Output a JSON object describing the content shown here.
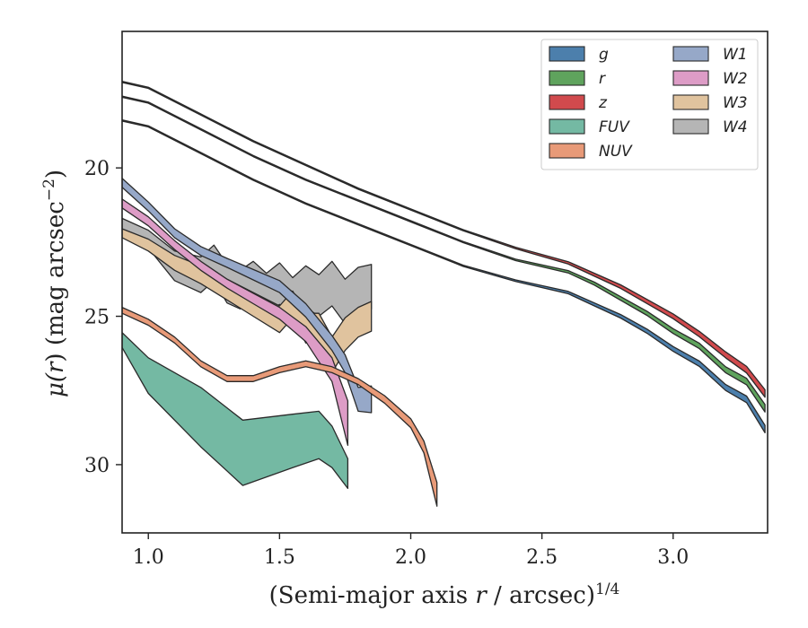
{
  "chart_data": {
    "type": "area",
    "xlabel_main": "(Semi-major axis ",
    "xlabel_var": "r",
    "xlabel_tail": " / arcsec)",
    "xlabel_sup": "1/4",
    "ylabel_main": "μ(",
    "ylabel_var": "r",
    "ylabel_tail": ") (mag arcsec",
    "ylabel_sup": "−2",
    "ylabel_close": ")",
    "xlim": [
      0.9,
      3.36
    ],
    "ylim": [
      32.3,
      15.4
    ],
    "y_inverted": true,
    "xticks": [
      1.0,
      1.5,
      2.0,
      2.5,
      3.0
    ],
    "xtick_labels": [
      "1.0",
      "1.5",
      "2.0",
      "2.5",
      "3.0"
    ],
    "yticks": [
      20,
      25,
      30
    ],
    "ytick_labels": [
      "20",
      "25",
      "30"
    ],
    "grid": false,
    "legend_position": "top-right",
    "legend_columns": 2,
    "series": [
      {
        "name": "g",
        "color": "#4c7fac",
        "x": [
          0.9,
          1.0,
          1.2,
          1.4,
          1.6,
          1.8,
          2.0,
          2.2,
          2.4,
          2.6,
          2.7,
          2.8,
          2.9,
          3.0,
          3.1,
          3.2,
          3.28,
          3.35
        ],
        "y": [
          18.4,
          18.6,
          19.5,
          20.4,
          21.2,
          21.9,
          22.6,
          23.3,
          23.8,
          24.2,
          24.6,
          25.0,
          25.5,
          26.1,
          26.6,
          27.4,
          27.8,
          28.8
        ],
        "width": [
          0.04,
          0.04,
          0.04,
          0.04,
          0.04,
          0.04,
          0.04,
          0.04,
          0.05,
          0.08,
          0.1,
          0.12,
          0.14,
          0.16,
          0.18,
          0.2,
          0.22,
          0.25
        ]
      },
      {
        "name": "r",
        "color": "#5fa35d",
        "x": [
          0.9,
          1.0,
          1.2,
          1.4,
          1.6,
          1.8,
          2.0,
          2.2,
          2.4,
          2.6,
          2.7,
          2.8,
          2.9,
          3.0,
          3.1,
          3.2,
          3.28,
          3.35
        ],
        "y": [
          17.6,
          17.8,
          18.7,
          19.6,
          20.4,
          21.1,
          21.8,
          22.5,
          23.1,
          23.5,
          23.9,
          24.4,
          24.9,
          25.5,
          26.0,
          26.8,
          27.2,
          28.1
        ],
        "width": [
          0.04,
          0.04,
          0.04,
          0.04,
          0.04,
          0.04,
          0.04,
          0.04,
          0.05,
          0.08,
          0.1,
          0.12,
          0.14,
          0.16,
          0.18,
          0.2,
          0.22,
          0.25
        ]
      },
      {
        "name": "z",
        "color": "#d14a4d",
        "x": [
          0.9,
          1.0,
          1.2,
          1.4,
          1.6,
          1.8,
          2.0,
          2.2,
          2.4,
          2.6,
          2.7,
          2.8,
          2.9,
          3.0,
          3.1,
          3.2,
          3.28,
          3.35
        ],
        "y": [
          17.1,
          17.3,
          18.2,
          19.1,
          19.9,
          20.7,
          21.4,
          22.1,
          22.7,
          23.2,
          23.6,
          24.0,
          24.5,
          25.0,
          25.6,
          26.3,
          26.8,
          27.6
        ],
        "width": [
          0.04,
          0.04,
          0.04,
          0.04,
          0.04,
          0.04,
          0.04,
          0.04,
          0.05,
          0.08,
          0.1,
          0.12,
          0.14,
          0.16,
          0.18,
          0.2,
          0.22,
          0.25
        ]
      },
      {
        "name": "FUV",
        "color": "#74b9a3",
        "x": [
          0.9,
          1.0,
          1.2,
          1.36,
          1.55,
          1.65,
          1.7,
          1.76
        ],
        "y": [
          25.8,
          27.0,
          28.4,
          29.6,
          29.2,
          29.0,
          29.4,
          30.3
        ],
        "width": [
          0.5,
          1.2,
          2.0,
          2.2,
          1.8,
          1.6,
          1.4,
          1.0
        ]
      },
      {
        "name": "NUV",
        "color": "#e89a78",
        "x": [
          0.9,
          1.0,
          1.1,
          1.2,
          1.3,
          1.4,
          1.5,
          1.6,
          1.7,
          1.8,
          1.9,
          2.0,
          2.05,
          2.1
        ],
        "y": [
          24.8,
          25.2,
          25.8,
          26.6,
          27.1,
          27.1,
          26.8,
          26.6,
          26.8,
          27.2,
          27.8,
          28.6,
          29.4,
          31.0
        ],
        "width": [
          0.2,
          0.2,
          0.2,
          0.2,
          0.2,
          0.2,
          0.2,
          0.2,
          0.2,
          0.2,
          0.25,
          0.3,
          0.4,
          0.8
        ]
      },
      {
        "name": "W1",
        "color": "#96a8c8",
        "x": [
          0.9,
          1.0,
          1.1,
          1.2,
          1.3,
          1.4,
          1.5,
          1.6,
          1.7,
          1.75,
          1.8,
          1.85
        ],
        "y": [
          20.5,
          21.3,
          22.2,
          22.8,
          23.2,
          23.6,
          24.0,
          24.8,
          25.9,
          26.6,
          27.8,
          27.8
        ],
        "width": [
          0.3,
          0.3,
          0.3,
          0.3,
          0.3,
          0.35,
          0.4,
          0.45,
          0.5,
          0.6,
          0.8,
          0.9
        ]
      },
      {
        "name": "W2",
        "color": "#dd9cc6",
        "x": [
          0.9,
          1.0,
          1.1,
          1.2,
          1.3,
          1.4,
          1.5,
          1.6,
          1.7,
          1.76
        ],
        "y": [
          21.2,
          21.8,
          22.6,
          23.3,
          23.9,
          24.4,
          24.9,
          25.6,
          26.8,
          28.6
        ],
        "width": [
          0.3,
          0.3,
          0.3,
          0.3,
          0.3,
          0.35,
          0.4,
          0.5,
          0.8,
          1.5
        ]
      },
      {
        "name": "W3",
        "color": "#e0c39e",
        "x": [
          0.9,
          1.0,
          1.1,
          1.2,
          1.3,
          1.4,
          1.5,
          1.55,
          1.6,
          1.65,
          1.7,
          1.75,
          1.8,
          1.85
        ],
        "y": [
          22.2,
          22.6,
          23.2,
          23.6,
          24.1,
          24.6,
          25.1,
          24.6,
          25.4,
          25.4,
          26.3,
          25.6,
          25.2,
          25.0
        ],
        "width": [
          0.3,
          0.4,
          0.5,
          0.6,
          0.7,
          0.8,
          0.9,
          0.9,
          1.0,
          1.0,
          1.2,
          1.1,
          1.0,
          1.0
        ]
      },
      {
        "name": "W4",
        "color": "#b5b5b5",
        "x": [
          0.9,
          1.0,
          1.1,
          1.2,
          1.25,
          1.3,
          1.35,
          1.4,
          1.45,
          1.5,
          1.55,
          1.6,
          1.65,
          1.7,
          1.75,
          1.8,
          1.85
        ],
        "y": [
          21.9,
          22.4,
          23.3,
          23.6,
          23.2,
          23.9,
          24.1,
          23.8,
          24.2,
          23.9,
          24.4,
          24.0,
          24.3,
          23.9,
          24.5,
          24.1,
          24.0
        ],
        "width": [
          0.4,
          0.6,
          1.0,
          1.2,
          1.2,
          1.3,
          1.3,
          1.3,
          1.3,
          1.4,
          1.4,
          1.4,
          1.4,
          1.5,
          1.5,
          1.5,
          1.5
        ]
      }
    ]
  }
}
